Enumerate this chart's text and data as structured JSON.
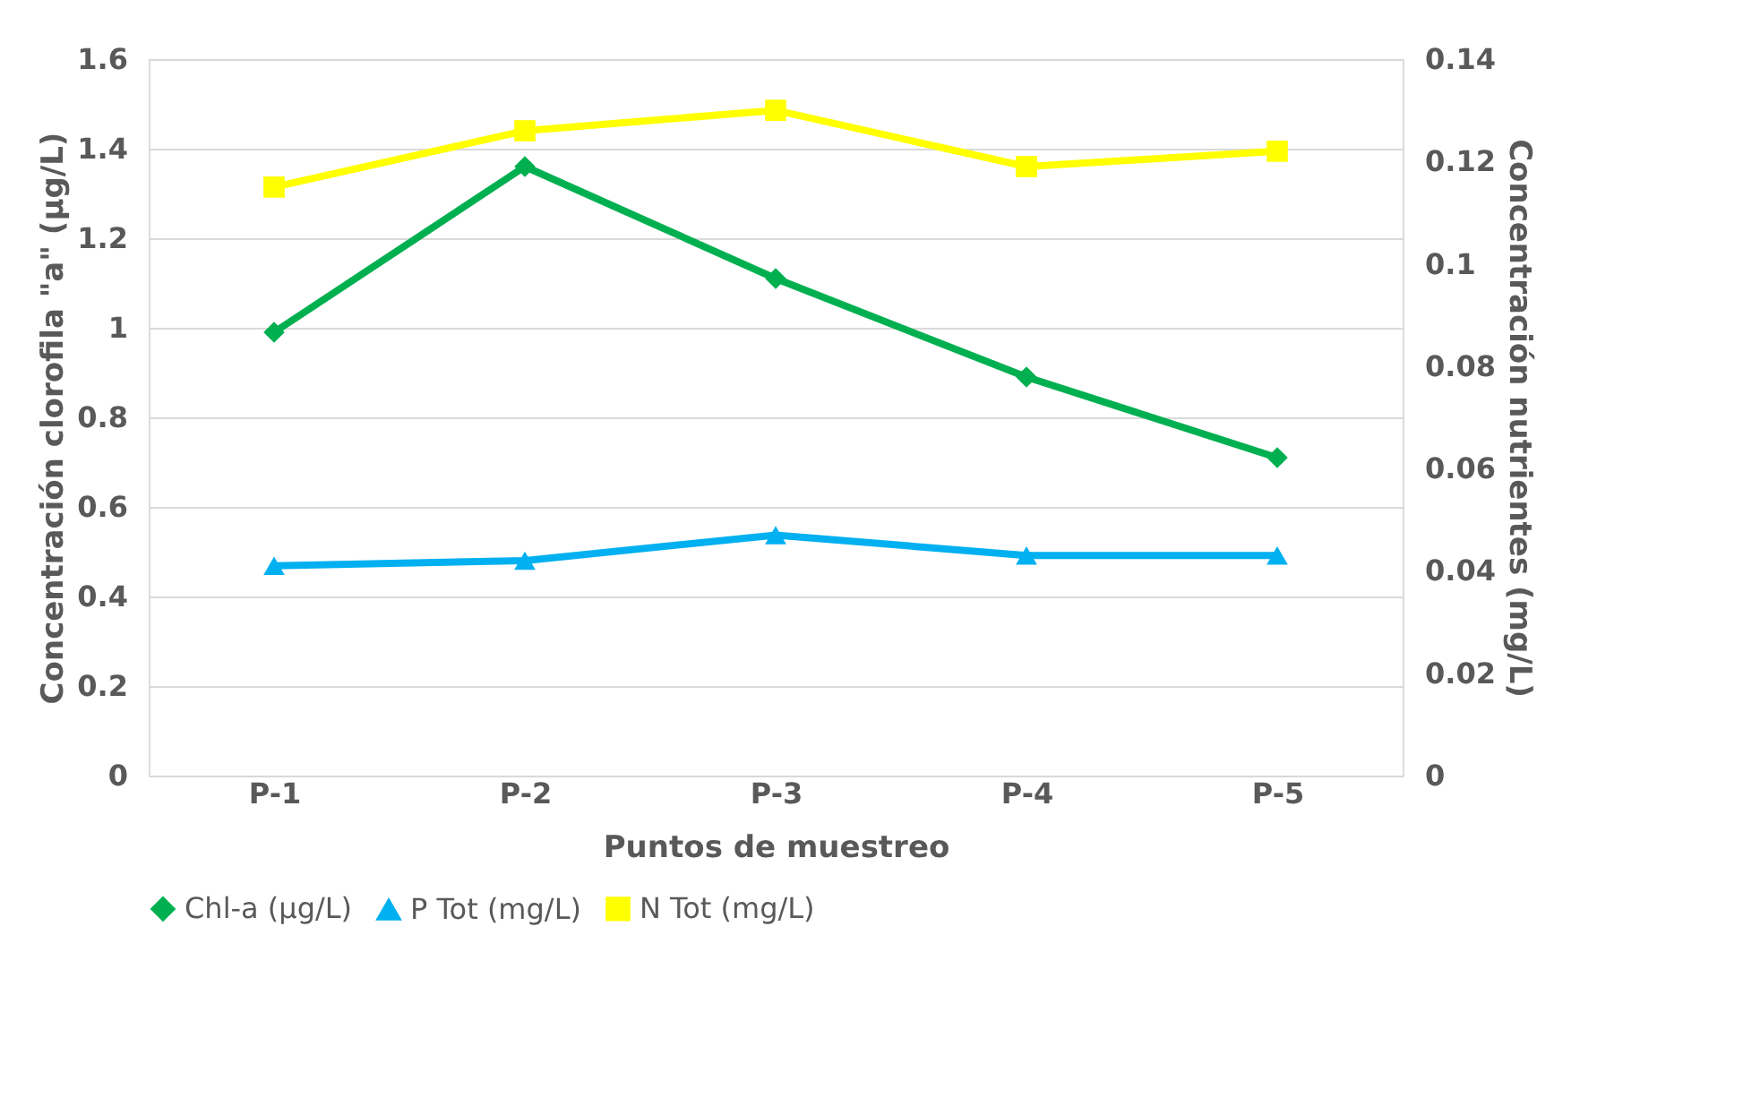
{
  "chart_data": {
    "type": "line",
    "xlabel": "Puntos de muestreo",
    "ylabel": "Concentración clorofila \"a\" (µg/L)",
    "y2label": "Concentración nutrientes (mg/L)",
    "categories": [
      "P-1",
      "P-2",
      "P-3",
      "P-4",
      "P-5"
    ],
    "ylim": [
      0,
      1.6
    ],
    "yticks": [
      0,
      0.2,
      0.4,
      0.6,
      0.8,
      1,
      1.2,
      1.4,
      1.6
    ],
    "y2lim": [
      0,
      0.14
    ],
    "y2ticks": [
      0,
      0.02,
      0.04,
      0.06,
      0.08,
      0.1,
      0.12,
      0.14
    ],
    "grid": "y",
    "legend": "bottom",
    "line_style": "solid",
    "series": [
      {
        "name": "Chl-a (µg/L)",
        "color": "#00b050",
        "marker": "diamond",
        "values": [
          0.99,
          1.36,
          1.11,
          0.89,
          0.71
        ]
      },
      {
        "name": "P Tot (mg/L)",
        "color": "#00b0f0",
        "marker": "triangle",
        "axis": "y2",
        "values": [
          0.041,
          0.042,
          0.047,
          0.043,
          0.043
        ]
      },
      {
        "name": "N Tot (mg/L)",
        "color": "#ffff00",
        "marker": "square",
        "axis": "y2",
        "values": [
          0.115,
          0.126,
          0.13,
          0.119,
          0.122
        ]
      }
    ]
  }
}
